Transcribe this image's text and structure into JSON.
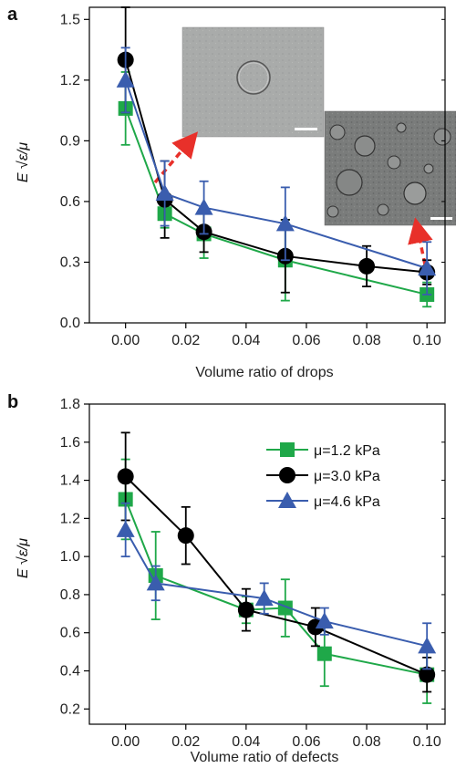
{
  "colors": {
    "green": "#1fa849",
    "black": "#000000",
    "blue": "#3a5dae",
    "arrow": "#e8302a"
  },
  "ylabel_text": "E √ε/μ",
  "chart_data": [
    {
      "panel": "a",
      "type": "line",
      "xlabel": "Volume ratio of drops",
      "ylabel": "E √ε/μ",
      "xlim": [
        -0.012,
        0.106
      ],
      "ylim": [
        0.0,
        1.56
      ],
      "xticks": [
        0.0,
        0.02,
        0.04,
        0.06,
        0.08,
        0.1
      ],
      "xtick_labels": [
        "0.00",
        "0.02",
        "0.04",
        "0.06",
        "0.08",
        "0.10"
      ],
      "yticks": [
        0.0,
        0.3,
        0.6,
        0.9,
        1.2,
        1.5
      ],
      "ytick_labels": [
        "0.0",
        "0.3",
        "0.6",
        "0.9",
        "1.2",
        "1.5"
      ],
      "grid": false,
      "insets": [
        "micrograph with single drop",
        "micrograph with many drops"
      ],
      "series": [
        {
          "color": "green",
          "marker": "square",
          "x": [
            0.0,
            0.013,
            0.026,
            0.053,
            0.1
          ],
          "y": [
            1.06,
            0.54,
            0.44,
            0.31,
            0.14
          ],
          "err": [
            0.18,
            0.07,
            0.12,
            0.2,
            0.06
          ]
        },
        {
          "color": "black",
          "marker": "circle",
          "x": [
            0.0,
            0.013,
            0.026,
            0.053,
            0.08,
            0.1
          ],
          "y": [
            1.3,
            0.61,
            0.45,
            0.33,
            0.28,
            0.25
          ],
          "err": [
            0.26,
            0.19,
            0.1,
            0.18,
            0.1,
            0.06
          ]
        },
        {
          "color": "blue",
          "marker": "triangle",
          "x": [
            0.0,
            0.013,
            0.026,
            0.053,
            0.1
          ],
          "y": [
            1.2,
            0.64,
            0.57,
            0.49,
            0.27
          ],
          "err": [
            0.16,
            0.16,
            0.13,
            0.18,
            0.13
          ]
        }
      ]
    },
    {
      "panel": "b",
      "type": "line",
      "xlabel": "Volume ratio of defects",
      "ylabel": "E √ε/μ",
      "xlim": [
        -0.012,
        0.106
      ],
      "ylim": [
        0.12,
        1.8
      ],
      "xticks": [
        0.0,
        0.02,
        0.04,
        0.06,
        0.08,
        0.1
      ],
      "xtick_labels": [
        "0.00",
        "0.02",
        "0.04",
        "0.06",
        "0.08",
        "0.10"
      ],
      "yticks": [
        0.2,
        0.4,
        0.6,
        0.8,
        1.0,
        1.2,
        1.4,
        1.6,
        1.8
      ],
      "ytick_labels": [
        "0.2",
        "0.4",
        "0.6",
        "0.8",
        "1.0",
        "1.2",
        "1.4",
        "1.6",
        "1.8"
      ],
      "grid": false,
      "legend_position": "top-right",
      "series": [
        {
          "name": "μ=1.2 kPa",
          "color": "green",
          "marker": "square",
          "x": [
            0.0,
            0.01,
            0.04,
            0.053,
            0.066,
            0.1
          ],
          "y": [
            1.3,
            0.9,
            0.72,
            0.73,
            0.49,
            0.38
          ],
          "err": [
            0.21,
            0.23,
            0.07,
            0.15,
            0.17,
            0.15
          ]
        },
        {
          "name": "μ=3.0 kPa",
          "color": "black",
          "marker": "circle",
          "x": [
            0.0,
            0.02,
            0.04,
            0.063,
            0.1
          ],
          "y": [
            1.42,
            1.11,
            0.72,
            0.63,
            0.38
          ],
          "err": [
            0.23,
            0.15,
            0.11,
            0.1,
            0.09
          ]
        },
        {
          "name": "μ=4.6 kPa",
          "color": "blue",
          "marker": "triangle",
          "x": [
            0.0,
            0.01,
            0.046,
            0.066,
            0.1
          ],
          "y": [
            1.14,
            0.86,
            0.78,
            0.66,
            0.53
          ],
          "err": [
            0.14,
            0.09,
            0.08,
            0.07,
            0.12
          ]
        }
      ]
    }
  ]
}
